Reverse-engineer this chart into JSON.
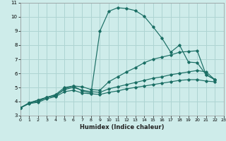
{
  "xlabel": "Humidex (Indice chaleur)",
  "background_color": "#ceecea",
  "grid_color": "#aed4d2",
  "line_color": "#1a6e64",
  "xlim": [
    0,
    23
  ],
  "ylim": [
    3,
    11
  ],
  "xticks": [
    0,
    1,
    2,
    3,
    4,
    5,
    6,
    7,
    8,
    9,
    10,
    11,
    12,
    13,
    14,
    15,
    16,
    17,
    18,
    19,
    20,
    21,
    22,
    23
  ],
  "yticks": [
    3,
    4,
    5,
    6,
    7,
    8,
    9,
    10,
    11
  ],
  "series": [
    {
      "x": [
        0,
        1,
        2,
        3,
        4,
        5,
        6,
        7,
        8,
        9,
        10,
        11,
        12,
        13,
        14,
        15,
        16,
        17,
        18,
        19,
        20,
        21,
        22
      ],
      "y": [
        3.55,
        3.9,
        4.0,
        4.3,
        4.4,
        4.9,
        5.1,
        4.75,
        4.6,
        9.0,
        10.4,
        10.65,
        10.6,
        10.45,
        10.05,
        9.3,
        8.5,
        7.5,
        8.0,
        6.8,
        6.75,
        5.9,
        5.55
      ]
    },
    {
      "x": [
        0,
        1,
        2,
        3,
        4,
        5,
        6,
        7,
        8,
        9,
        10,
        11,
        12,
        13,
        14,
        15,
        16,
        17,
        18,
        19,
        20,
        21,
        22
      ],
      "y": [
        3.55,
        3.9,
        4.1,
        4.3,
        4.5,
        5.0,
        5.1,
        5.05,
        4.85,
        4.8,
        5.4,
        5.75,
        6.1,
        6.4,
        6.75,
        7.0,
        7.15,
        7.3,
        7.5,
        7.55,
        7.6,
        5.9,
        5.55
      ]
    },
    {
      "x": [
        0,
        1,
        2,
        3,
        4,
        5,
        6,
        7,
        8,
        9,
        10,
        11,
        12,
        13,
        14,
        15,
        16,
        17,
        18,
        19,
        20,
        21,
        22
      ],
      "y": [
        3.55,
        3.9,
        4.1,
        4.3,
        4.45,
        4.85,
        5.0,
        4.8,
        4.7,
        4.65,
        4.9,
        5.05,
        5.2,
        5.35,
        5.5,
        5.65,
        5.75,
        5.9,
        6.0,
        6.1,
        6.2,
        6.1,
        5.55
      ]
    },
    {
      "x": [
        0,
        1,
        2,
        3,
        4,
        5,
        6,
        7,
        8,
        9,
        10,
        11,
        12,
        13,
        14,
        15,
        16,
        17,
        18,
        19,
        20,
        21,
        22
      ],
      "y": [
        3.55,
        3.85,
        3.95,
        4.2,
        4.35,
        4.7,
        4.8,
        4.6,
        4.55,
        4.5,
        4.65,
        4.75,
        4.9,
        5.0,
        5.1,
        5.2,
        5.3,
        5.4,
        5.5,
        5.55,
        5.55,
        5.45,
        5.4
      ]
    }
  ]
}
